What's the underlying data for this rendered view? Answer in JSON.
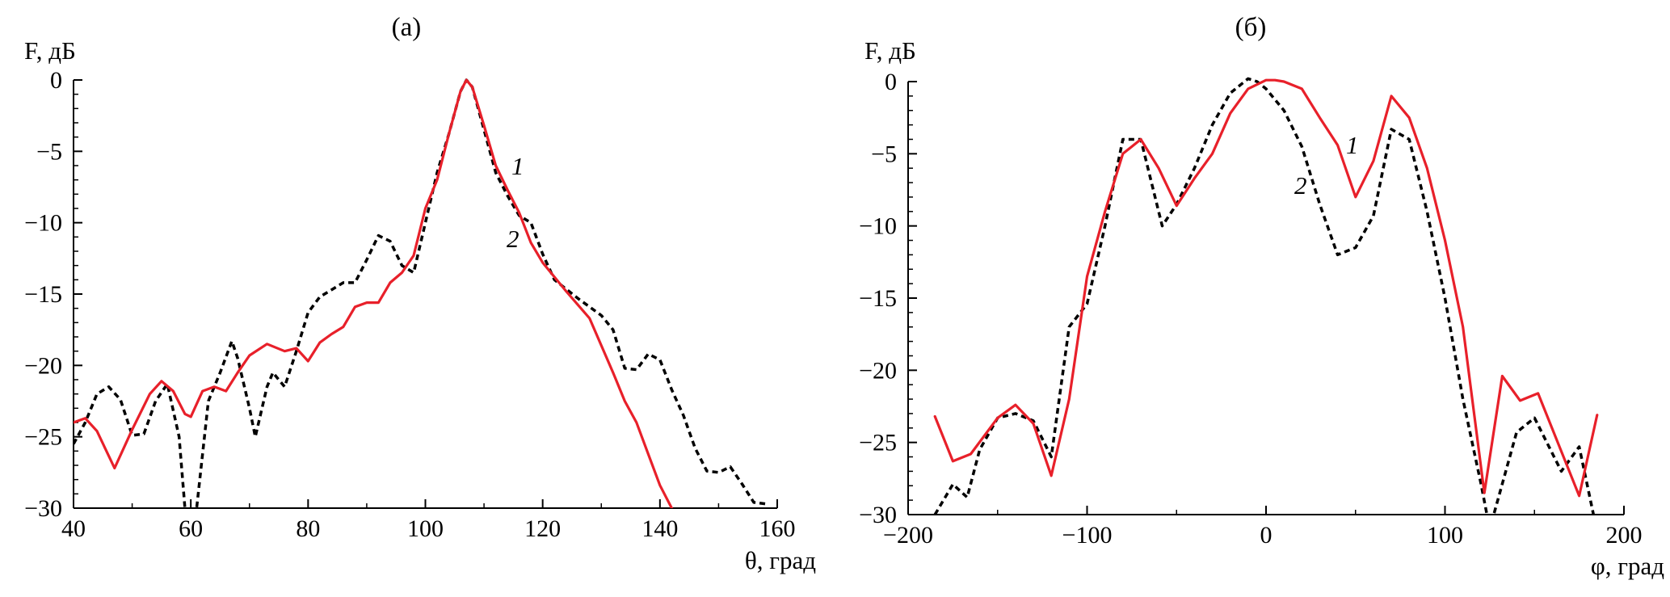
{
  "chart_data": [
    {
      "type": "line",
      "title": "(а)",
      "xlabel": "θ, град",
      "ylabel": "F, дБ",
      "xlim": [
        40,
        160
      ],
      "ylim": [
        -30,
        0
      ],
      "xticks": [
        "40",
        "60",
        "80",
        "100",
        "120",
        "140",
        "160"
      ],
      "yticks": [
        "0",
        "−5",
        "−10",
        "−15",
        "−20",
        "−25",
        "−30"
      ],
      "grid": false,
      "series": [
        {
          "name": "1",
          "color": "#e8202a",
          "style": "solid",
          "x": [
            40,
            42,
            44,
            47,
            50,
            53,
            55,
            57,
            59,
            60,
            62,
            64,
            66,
            68,
            70,
            73,
            76,
            78,
            80,
            82,
            84,
            86,
            88,
            90,
            92,
            94,
            96,
            98,
            100,
            102,
            104,
            106,
            107,
            108,
            110,
            112,
            114,
            116,
            118,
            120,
            124,
            128,
            132,
            134,
            136,
            138,
            140,
            142
          ],
          "values": [
            -24.0,
            -23.7,
            -24.6,
            -27.2,
            -24.5,
            -22.0,
            -21.1,
            -21.8,
            -23.4,
            -23.6,
            -21.8,
            -21.5,
            -21.8,
            -20.5,
            -19.3,
            -18.5,
            -19.0,
            -18.8,
            -19.7,
            -18.4,
            -17.8,
            -17.3,
            -15.9,
            -15.6,
            -15.6,
            -14.2,
            -13.5,
            -12.3,
            -9.0,
            -7.0,
            -3.8,
            -0.8,
            0.0,
            -0.5,
            -3.2,
            -6.0,
            -7.7,
            -9.3,
            -11.4,
            -12.8,
            -14.8,
            -16.7,
            -20.5,
            -22.5,
            -24.0,
            -26.2,
            -28.4,
            -30.0
          ]
        },
        {
          "name": "2",
          "color": "#000000",
          "style": "dashed",
          "x": [
            40,
            42,
            44,
            46,
            48,
            50,
            52,
            54,
            56,
            58,
            59,
            60,
            61,
            63,
            65,
            67,
            68,
            70,
            71,
            73,
            74,
            76,
            78,
            80,
            82,
            84,
            86,
            88,
            90,
            92,
            94,
            96,
            98,
            100,
            102,
            104,
            106,
            107,
            108,
            110,
            112,
            114,
            116,
            118,
            120,
            122,
            126,
            130,
            132,
            134,
            136,
            138,
            140,
            142,
            144,
            146,
            148,
            150,
            152,
            154,
            156,
            158
          ],
          "values": [
            -25.5,
            -24.0,
            -22.0,
            -21.5,
            -22.4,
            -24.9,
            -24.8,
            -22.5,
            -21.3,
            -25.0,
            -30.0,
            -31.0,
            -30.0,
            -22.5,
            -20.5,
            -18.3,
            -19.5,
            -23.0,
            -25.0,
            -21.5,
            -20.5,
            -21.5,
            -19.0,
            -16.3,
            -15.2,
            -14.7,
            -14.2,
            -14.2,
            -12.6,
            -10.9,
            -11.3,
            -13.0,
            -13.5,
            -10.0,
            -6.5,
            -3.8,
            -0.8,
            0.0,
            -0.5,
            -3.5,
            -6.5,
            -8.1,
            -9.5,
            -10.0,
            -12.2,
            -14.0,
            -15.3,
            -16.5,
            -17.5,
            -20.2,
            -20.3,
            -19.2,
            -19.6,
            -21.7,
            -23.5,
            -25.8,
            -27.4,
            -27.5,
            -27.1,
            -28.3,
            -29.6,
            -29.7
          ]
        }
      ],
      "annotations": [
        "1",
        "2"
      ]
    },
    {
      "type": "line",
      "title": "(б)",
      "xlabel": "φ, град",
      "ylabel": "F, дБ",
      "xlim": [
        -200,
        200
      ],
      "ylim": [
        -30,
        0
      ],
      "xticks": [
        "−200",
        "−100",
        "0",
        "100",
        "200"
      ],
      "yticks": [
        "0",
        "−5",
        "−10",
        "−15",
        "−20",
        "−25",
        "−30"
      ],
      "grid": false,
      "series": [
        {
          "name": "1",
          "color": "#e8202a",
          "style": "solid",
          "x": [
            -185,
            -175,
            -165,
            -150,
            -140,
            -130,
            -120,
            -110,
            -100,
            -90,
            -80,
            -70,
            -60,
            -50,
            -40,
            -30,
            -20,
            -10,
            0,
            5,
            10,
            20,
            30,
            40,
            50,
            60,
            70,
            80,
            90,
            100,
            110,
            122,
            132,
            142,
            152,
            175,
            185
          ],
          "values": [
            -23.2,
            -26.3,
            -25.8,
            -23.3,
            -22.4,
            -23.7,
            -27.3,
            -22.0,
            -13.5,
            -9.0,
            -5.0,
            -4.0,
            -6.0,
            -8.6,
            -6.7,
            -5.0,
            -2.2,
            -0.5,
            0.1,
            0.1,
            0.0,
            -0.5,
            -2.5,
            -4.4,
            -8.0,
            -5.5,
            -1.0,
            -2.5,
            -6.0,
            -11.0,
            -17.0,
            -28.5,
            -20.4,
            -22.1,
            -21.6,
            -28.7,
            -23.1
          ]
        },
        {
          "name": "2",
          "color": "#000000",
          "style": "dashed",
          "x": [
            -185,
            -175,
            -167,
            -160,
            -150,
            -140,
            -130,
            -120,
            -110,
            -100,
            -90,
            -80,
            -70,
            -58,
            -50,
            -40,
            -30,
            -20,
            -10,
            -5,
            0,
            10,
            20,
            30,
            40,
            50,
            60,
            70,
            80,
            90,
            100,
            110,
            120,
            125,
            140,
            150,
            165,
            175,
            183
          ],
          "values": [
            -30.0,
            -27.9,
            -28.8,
            -25.5,
            -23.3,
            -23.0,
            -23.5,
            -26.0,
            -17.0,
            -15.4,
            -10.0,
            -4.0,
            -4.0,
            -10.0,
            -8.5,
            -6.0,
            -3.0,
            -0.8,
            0.2,
            0.0,
            -0.5,
            -2.0,
            -4.5,
            -8.5,
            -12.0,
            -11.5,
            -9.3,
            -3.3,
            -4.0,
            -9.0,
            -15.0,
            -22.0,
            -27.8,
            -31.0,
            -24.3,
            -23.3,
            -27.0,
            -25.3,
            -30.0
          ]
        }
      ],
      "annotations": [
        "1",
        "2"
      ]
    }
  ]
}
